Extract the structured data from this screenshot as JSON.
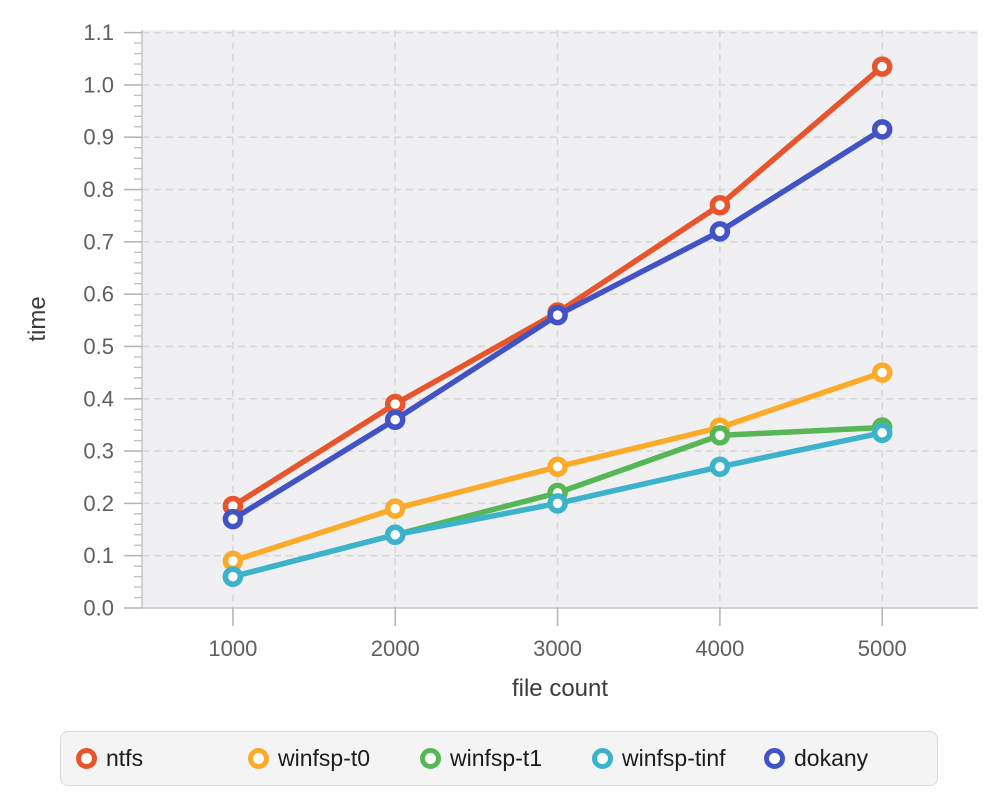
{
  "chart_data": {
    "type": "line",
    "title": "",
    "xlabel": "file count",
    "ylabel": "time",
    "x": [
      1000,
      2000,
      3000,
      4000,
      5000
    ],
    "series": [
      {
        "name": "ntfs",
        "color": "#e8552d",
        "values": [
          0.195,
          0.39,
          0.565,
          0.77,
          1.035
        ]
      },
      {
        "name": "winfsp-t0",
        "color": "#fbab29",
        "values": [
          0.09,
          0.19,
          0.27,
          0.345,
          0.45
        ]
      },
      {
        "name": "winfsp-t1",
        "color": "#57b757",
        "values": [
          0.06,
          0.14,
          0.22,
          0.33,
          0.345
        ]
      },
      {
        "name": "winfsp-tinf",
        "color": "#3db2cc",
        "values": [
          0.06,
          0.14,
          0.2,
          0.27,
          0.335
        ]
      },
      {
        "name": "dokany",
        "color": "#4254c5",
        "values": [
          0.17,
          0.36,
          0.56,
          0.72,
          0.915
        ]
      }
    ],
    "xticks": [
      1000,
      2000,
      3000,
      4000,
      5000
    ],
    "yticks": [
      0.0,
      0.1,
      0.2,
      0.3,
      0.4,
      0.5,
      0.6,
      0.7,
      0.8,
      0.9,
      1.0,
      1.1
    ],
    "y_minor_step": 0.02,
    "xlim": [
      440,
      5590
    ],
    "ylim": [
      0,
      1.105
    ],
    "grid": "dashed, major x and y",
    "legend_position": "bottom",
    "marker": "open-circle",
    "plot_bg": "#f0f0f2",
    "grid_color": "#d8d8da",
    "axis_line_color": "#c7c7c9",
    "tick_label_color": "#5f5f5f",
    "axis_title_color": "#3c3c3c",
    "legend_bg": "#f4f4f5",
    "legend_border": "#d9d9db"
  }
}
